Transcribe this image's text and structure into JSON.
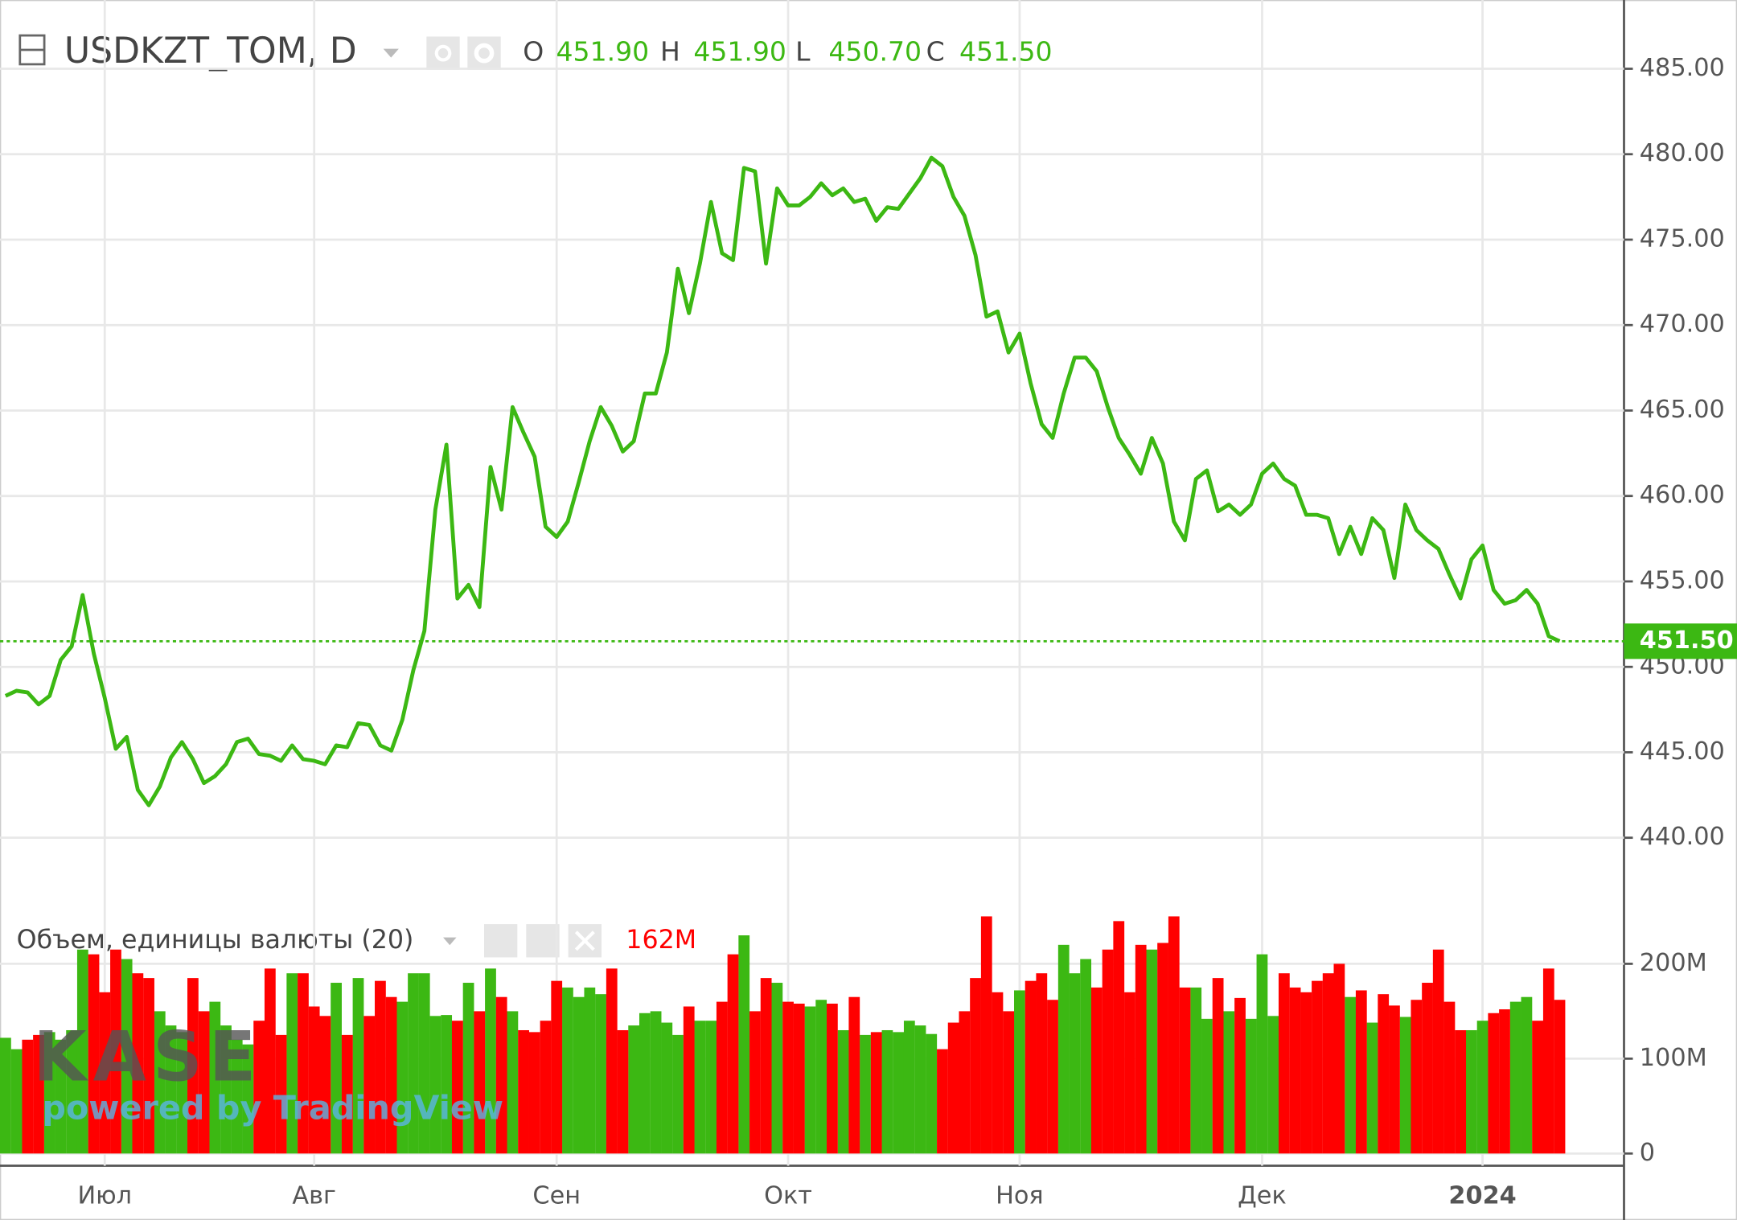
{
  "chart_data": [
    {
      "type": "line",
      "title": "USDKZT_TOM, D",
      "color": "#3cb813",
      "ohlc": [
        {
          "name": "O",
          "value": 451.9,
          "label": "451.90"
        },
        {
          "name": "H",
          "value": 451.9,
          "label": "451.90"
        },
        {
          "name": "L",
          "value": 450.7,
          "label": "450.70"
        },
        {
          "name": "C",
          "value": 451.5,
          "label": "451.50"
        }
      ],
      "last_price": {
        "value": 451.5,
        "label": "451.50"
      },
      "ylim": [
        436.5,
        488.7
      ],
      "yticks": [
        {
          "value": 440,
          "label": "440.00"
        },
        {
          "value": 445,
          "label": "445.00"
        },
        {
          "value": 450,
          "label": "450.00"
        },
        {
          "value": 455,
          "label": "455.00"
        },
        {
          "value": 460,
          "label": "460.00"
        },
        {
          "value": 465,
          "label": "465.00"
        },
        {
          "value": 470,
          "label": "470.00"
        },
        {
          "value": 475,
          "label": "475.00"
        },
        {
          "value": 480,
          "label": "480.00"
        },
        {
          "value": 485,
          "label": "485.00"
        }
      ],
      "grid": true,
      "categories": [
        null,
        null,
        null,
        null,
        null,
        null,
        null,
        null,
        null,
        "Июл",
        null,
        null,
        null,
        null,
        null,
        null,
        null,
        null,
        null,
        null,
        null,
        null,
        null,
        null,
        null,
        null,
        null,
        null,
        "Авг",
        null,
        null,
        null,
        null,
        null,
        null,
        null,
        null,
        null,
        null,
        null,
        null,
        null,
        null,
        null,
        null,
        null,
        null,
        null,
        null,
        null,
        "Сен",
        null,
        null,
        null,
        null,
        null,
        null,
        null,
        null,
        null,
        null,
        null,
        null,
        null,
        null,
        null,
        null,
        null,
        null,
        null,
        null,
        "Окт",
        null,
        null,
        null,
        null,
        null,
        null,
        null,
        null,
        null,
        null,
        null,
        null,
        null,
        null,
        null,
        null,
        null,
        null,
        null,
        null,
        "Ноя",
        null,
        null,
        null,
        null,
        null,
        null,
        null,
        null,
        null,
        null,
        null,
        null,
        null,
        null,
        null,
        null,
        null,
        null,
        null,
        null,
        null,
        "Дек",
        null,
        null,
        null,
        null,
        null,
        null,
        null,
        null,
        null,
        null,
        null,
        null,
        null,
        null,
        null,
        null,
        null,
        null,
        null,
        "2024",
        null,
        null,
        null,
        null,
        null,
        null,
        null
      ],
      "values": [
        448.3,
        448.6,
        448.5,
        447.8,
        448.3,
        450.4,
        451.2,
        454.2,
        450.8,
        448.2,
        445.2,
        445.9,
        442.8,
        441.9,
        443.0,
        444.7,
        445.6,
        444.6,
        443.2,
        443.6,
        444.3,
        445.6,
        445.8,
        444.9,
        444.8,
        444.5,
        445.4,
        444.6,
        444.5,
        444.3,
        445.4,
        445.3,
        446.7,
        446.6,
        445.4,
        445.1,
        446.9,
        449.8,
        452.1,
        459.2,
        463.0,
        454.0,
        454.8,
        453.5,
        461.7,
        459.2,
        465.2,
        463.7,
        462.3,
        458.2,
        457.6,
        458.5,
        460.8,
        463.2,
        465.2,
        464.1,
        462.6,
        463.2,
        466.0,
        466.0,
        468.4,
        473.3,
        470.7,
        473.6,
        477.2,
        474.2,
        473.8,
        479.2,
        479.0,
        473.6,
        478.0,
        477.0,
        477.0,
        477.5,
        478.3,
        477.6,
        478.0,
        477.2,
        477.4,
        476.1,
        476.9,
        476.8,
        477.7,
        478.6,
        479.8,
        479.3,
        477.5,
        476.4,
        474.1,
        470.5,
        470.8,
        468.4,
        469.5,
        466.6,
        464.2,
        463.4,
        466.0,
        468.1,
        468.1,
        467.3,
        465.2,
        463.4,
        462.4,
        461.3,
        463.4,
        461.9,
        458.5,
        457.4,
        461.0,
        461.5,
        459.1,
        459.5,
        458.9,
        459.5,
        461.3,
        461.9,
        461.0,
        460.6,
        458.9,
        458.9,
        458.7,
        456.6,
        458.2,
        456.6,
        458.7,
        458.0,
        455.2,
        459.5,
        458.0,
        457.4,
        456.9,
        455.4,
        454.0,
        456.3,
        457.1,
        454.5,
        453.7,
        453.9,
        454.5,
        453.7,
        451.8,
        451.5
      ]
    },
    {
      "type": "bar",
      "title": "Объем, единицы валюты (20)",
      "current": {
        "value": 162,
        "label": "162M"
      },
      "ylim": [
        0,
        264
      ],
      "yticks": [
        0,
        {
          "value": 100,
          "label": "100M"
        },
        {
          "value": 200,
          "label": "200M"
        }
      ],
      "watermark": "KASE",
      "watermark_sub": "powered by TradingView",
      "series": [
        {
          "color": "#3cb813",
          "values": [
            122,
            110,
            null,
            null,
            128,
            120,
            130,
            215,
            null,
            null,
            null,
            205,
            null,
            null,
            150,
            135,
            128,
            null,
            null,
            160,
            135,
            120,
            115,
            null,
            null,
            null,
            190,
            null,
            null,
            null,
            180,
            null,
            185,
            null,
            null,
            null,
            160,
            190,
            190,
            145,
            146,
            null,
            180,
            null,
            195,
            null,
            150,
            null,
            null,
            null,
            null,
            175,
            165,
            175,
            168,
            null,
            null,
            135,
            148,
            150,
            138,
            125,
            null,
            140,
            140,
            null,
            null,
            230,
            null,
            null,
            180,
            null,
            null,
            155,
            162,
            null,
            130,
            null,
            125,
            null,
            130,
            128,
            140,
            135,
            126,
            null,
            null,
            null,
            null,
            null,
            null,
            null,
            172,
            null,
            null,
            null,
            220,
            190,
            205,
            null,
            null,
            null,
            null,
            null,
            215,
            null,
            null,
            null,
            175,
            142,
            null,
            150,
            null,
            142,
            210,
            145,
            null,
            null,
            null,
            null,
            null,
            null,
            165,
            null,
            138,
            null,
            null,
            144,
            null,
            null,
            null,
            null,
            null,
            130,
            140,
            null,
            null,
            160,
            165,
            null,
            null,
            null
          ]
        },
        {
          "color": "#ff0000",
          "values": [
            null,
            null,
            120,
            125,
            null,
            null,
            null,
            null,
            210,
            170,
            215,
            null,
            190,
            185,
            null,
            null,
            null,
            185,
            150,
            null,
            null,
            null,
            null,
            140,
            195,
            125,
            null,
            190,
            155,
            145,
            null,
            125,
            null,
            145,
            182,
            165,
            null,
            null,
            null,
            null,
            null,
            140,
            null,
            150,
            null,
            165,
            null,
            130,
            128,
            140,
            182,
            null,
            null,
            null,
            null,
            195,
            130,
            null,
            null,
            null,
            null,
            null,
            155,
            null,
            null,
            160,
            210,
            null,
            150,
            185,
            null,
            160,
            158,
            null,
            null,
            158,
            null,
            165,
            null,
            128,
            null,
            null,
            null,
            null,
            null,
            110,
            138,
            150,
            185,
            250,
            170,
            150,
            null,
            182,
            190,
            162,
            null,
            null,
            null,
            175,
            215,
            245,
            170,
            220,
            null,
            222,
            250,
            175,
            null,
            null,
            185,
            null,
            164,
            null,
            null,
            null,
            190,
            175,
            170,
            182,
            190,
            200,
            null,
            172,
            null,
            168,
            156,
            null,
            162,
            180,
            215,
            160,
            130,
            null,
            null,
            148,
            152,
            null,
            null,
            140,
            195,
            162
          ]
        }
      ]
    }
  ]
}
